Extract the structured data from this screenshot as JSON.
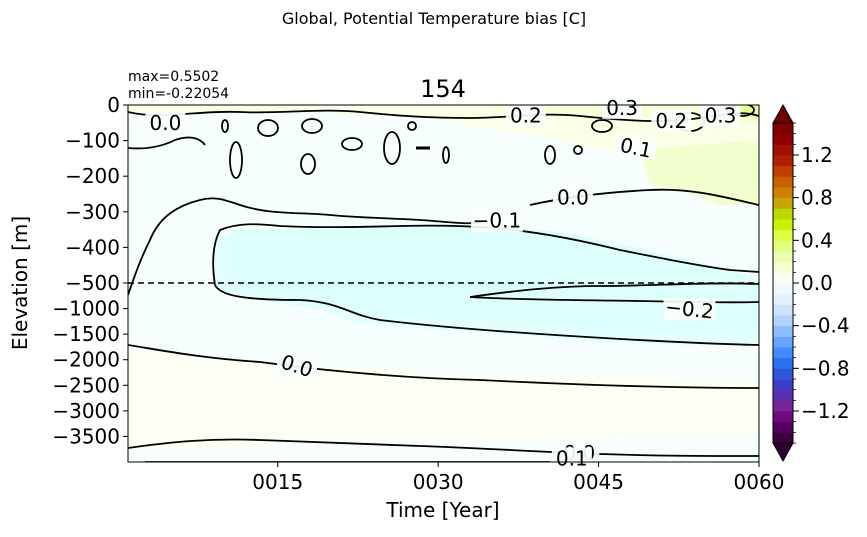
{
  "chart_data": {
    "type": "heatmap",
    "suptitle": "Global, Potential Temperature bias [C]",
    "title": "154",
    "stats": {
      "max": "max=0.5502",
      "min": "min=-0.22054"
    },
    "xlabel": "Time [Year]",
    "ylabel": "Elevation [m]",
    "x_range": [
      1,
      60
    ],
    "x_ticks": [
      {
        "value": 15,
        "label": "0015"
      },
      {
        "value": 30,
        "label": "0030"
      },
      {
        "value": 45,
        "label": "0045"
      },
      {
        "value": 60,
        "label": "0060"
      }
    ],
    "y_upper": {
      "range": [
        0,
        -500
      ],
      "ticks": [
        {
          "value": 0,
          "label": "0"
        },
        {
          "value": -100,
          "label": "−100"
        },
        {
          "value": -200,
          "label": "−200"
        },
        {
          "value": -300,
          "label": "−300"
        },
        {
          "value": -400,
          "label": "−400"
        },
        {
          "value": -500,
          "label": "−500"
        }
      ]
    },
    "y_lower": {
      "range": [
        -500,
        -4000
      ],
      "ticks": [
        {
          "value": -1000,
          "label": "−1000"
        },
        {
          "value": -1500,
          "label": "−1500"
        },
        {
          "value": -2000,
          "label": "−2000"
        },
        {
          "value": -2500,
          "label": "−2500"
        },
        {
          "value": -3000,
          "label": "−3000"
        },
        {
          "value": -3500,
          "label": "−3500"
        }
      ]
    },
    "split_depth": -500,
    "colorbar": {
      "range": [
        -1.5,
        1.5
      ],
      "extend": "both",
      "ticks": [
        {
          "value": 1.2,
          "label": "1.2"
        },
        {
          "value": 0.8,
          "label": "0.8"
        },
        {
          "value": 0.4,
          "label": "0.4"
        },
        {
          "value": 0.0,
          "label": "0.0"
        },
        {
          "value": -0.4,
          "label": "−0.4"
        },
        {
          "value": -0.8,
          "label": "−0.8"
        },
        {
          "value": -1.2,
          "label": "−1.2"
        }
      ],
      "colors": [
        "#3a0040",
        "#55005e",
        "#6e0a7d",
        "#7a249a",
        "#5a2fb0",
        "#3d3dc8",
        "#2f55dc",
        "#2a6ff0",
        "#3f8bff",
        "#65a4ff",
        "#8cbcff",
        "#b3d3ff",
        "#cfe3ff",
        "#e3f0ff",
        "#f0f8ff",
        "#fafff0",
        "#f3ffd0",
        "#ecffb0",
        "#e2ff80",
        "#d9ff40",
        "#c8f000",
        "#b8d800",
        "#c8a800",
        "#d08000",
        "#c86000",
        "#c04000",
        "#b02000",
        "#a01000",
        "#900000",
        "#800000"
      ],
      "upper_extend_color": "#6d0000",
      "lower_extend_color": "#2a0030"
    },
    "contour_labels": [
      {
        "text": "0.0",
        "x": 4.5,
        "y": -50,
        "rot": 0
      },
      {
        "text": "0.2",
        "x": 38.2,
        "y": -30,
        "rot": 0
      },
      {
        "text": "0.3",
        "x": 47.2,
        "y": -8,
        "rot": 0
      },
      {
        "text": "0.2",
        "x": 51.8,
        "y": -45,
        "rot": 0
      },
      {
        "text": "0.3",
        "x": 56.4,
        "y": -30,
        "rot": 0
      },
      {
        "text": "0.1",
        "x": 48.5,
        "y": -120,
        "rot": 12
      },
      {
        "text": "0.0",
        "x": 42.6,
        "y": -260,
        "rot": 0
      },
      {
        "text": "−0.1",
        "x": 35.5,
        "y": -325,
        "rot": 0
      },
      {
        "text": "−0.2",
        "x": 53.5,
        "y": -1010,
        "rot": 6
      },
      {
        "text": "0.0",
        "x": 16.8,
        "y": -2120,
        "rot": 18
      },
      {
        "text": "0.0",
        "x": 43.2,
        "y": -3820,
        "rot": 0
      },
      {
        "text": "0.1",
        "x": 42.5,
        "y": -3930,
        "rot": 0
      }
    ]
  }
}
